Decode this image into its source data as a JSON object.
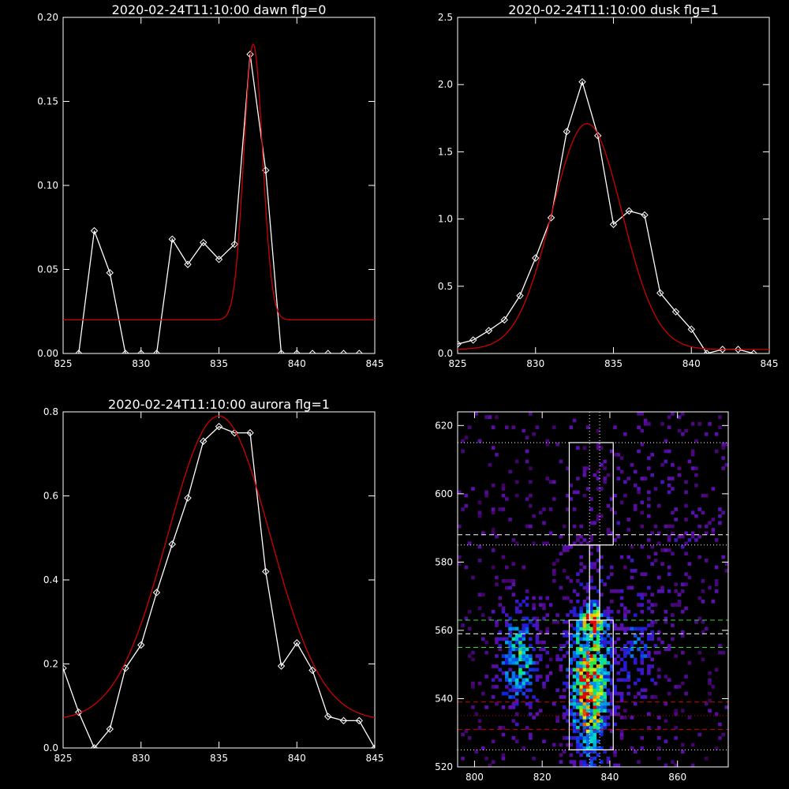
{
  "chart_data": [
    {
      "type": "line",
      "title": "2020-02-24T11:10:00 dawn flg=0",
      "xlim": [
        825,
        845
      ],
      "ylim": [
        0,
        0.2
      ],
      "xticks": [
        825,
        830,
        835,
        840,
        845
      ],
      "yticks": [
        0.0,
        0.05,
        0.1,
        0.15,
        0.2
      ],
      "ytick_labels": [
        "0.00",
        "0.05",
        "0.10",
        "0.15",
        "0.20"
      ],
      "series": [
        {
          "color": "#ffffff",
          "markers": "diamond",
          "x": [
            826,
            827,
            828,
            829,
            830,
            831,
            832,
            833,
            834,
            835,
            836,
            837,
            838,
            839,
            840,
            841,
            842,
            843,
            844
          ],
          "y": [
            0,
            0.073,
            0.048,
            0,
            0,
            0,
            0.068,
            0.053,
            0.066,
            0.056,
            0.065,
            0.178,
            0.109,
            0,
            0,
            0,
            0,
            0,
            0
          ]
        },
        {
          "color": "#d00000",
          "model": "gaussian",
          "baseline": 0.02,
          "amplitude": 0.164,
          "center": 837.2,
          "sigma": 0.6
        }
      ]
    },
    {
      "type": "line",
      "title": "2020-02-24T11:10:00 dusk flg=1",
      "xlim": [
        825,
        845
      ],
      "ylim": [
        0,
        2.5
      ],
      "xticks": [
        825,
        830,
        835,
        840,
        845
      ],
      "yticks": [
        0.0,
        0.5,
        1.0,
        1.5,
        2.0,
        2.5
      ],
      "ytick_labels": [
        "0.0",
        "0.5",
        "1.0",
        "1.5",
        "2.0",
        "2.5"
      ],
      "series": [
        {
          "color": "#ffffff",
          "markers": "diamond",
          "x": [
            825,
            826,
            827,
            828,
            829,
            830,
            831,
            832,
            833,
            834,
            835,
            836,
            837,
            838,
            839,
            840,
            841,
            842,
            843,
            844
          ],
          "y": [
            0.07,
            0.1,
            0.17,
            0.25,
            0.43,
            0.71,
            1.01,
            1.65,
            2.02,
            1.62,
            0.96,
            1.06,
            1.03,
            0.45,
            0.31,
            0.18,
            0,
            0.03,
            0.03,
            0
          ]
        },
        {
          "color": "#d00000",
          "model": "gaussian",
          "baseline": 0.03,
          "amplitude": 1.68,
          "center": 833.3,
          "sigma": 2.25
        }
      ]
    },
    {
      "type": "line",
      "title": "2020-02-24T11:10:00 aurora flg=1",
      "xlim": [
        825,
        845
      ],
      "ylim": [
        0,
        0.8
      ],
      "xticks": [
        825,
        830,
        835,
        840,
        845
      ],
      "yticks": [
        0.0,
        0.2,
        0.4,
        0.6,
        0.8
      ],
      "ytick_labels": [
        "0.0",
        "0.2",
        "0.4",
        "0.6",
        "0.8"
      ],
      "series": [
        {
          "color": "#ffffff",
          "markers": "diamond",
          "x": [
            825,
            826,
            827,
            828,
            829,
            830,
            831,
            832,
            833,
            834,
            835,
            836,
            837,
            838,
            839,
            840,
            841,
            842,
            843,
            844,
            845
          ],
          "y": [
            0.19,
            0.085,
            0,
            0.045,
            0.19,
            0.245,
            0.37,
            0.485,
            0.595,
            0.73,
            0.765,
            0.75,
            0.75,
            0.42,
            0.195,
            0.25,
            0.185,
            0.075,
            0.065,
            0.065,
            0
          ]
        },
        {
          "color": "#d00000",
          "model": "gaussian",
          "baseline": 0.065,
          "amplitude": 0.725,
          "center": 835.0,
          "sigma": 3.3
        }
      ]
    },
    {
      "type": "heatmap",
      "title": "",
      "xlim": [
        795,
        875
      ],
      "ylim": [
        520,
        624
      ],
      "xticks": [
        800,
        820,
        840,
        860
      ],
      "yticks": [
        520,
        540,
        560,
        580,
        600,
        620
      ],
      "colormap": "rainbow",
      "intensity_blobs": [
        {
          "x": 834,
          "y": 545,
          "sx": 4,
          "sy": 15,
          "amp": 1.0
        },
        {
          "x": 813,
          "y": 552,
          "sx": 4,
          "sy": 10,
          "amp": 0.55
        },
        {
          "x": 848,
          "y": 553,
          "sx": 4,
          "sy": 9,
          "amp": 0.3
        },
        {
          "x": 835,
          "y": 563,
          "sx": 2,
          "sy": 2,
          "amp": 0.9
        },
        {
          "x": 853,
          "y": 588,
          "sx": 18,
          "sy": 22,
          "amp": 0.08
        }
      ],
      "overlays": {
        "white_dotted_h": [
          525,
          585,
          615
        ],
        "white_dotted_v": [
          834,
          837
        ],
        "white_dashed_h": [
          559,
          588
        ],
        "green_dashed_h": [
          555,
          563
        ],
        "red_dashed_h": [
          531,
          539
        ],
        "red_dotted_h": [
          535
        ],
        "white_boxes": [
          {
            "x0": 828,
            "x1": 841,
            "y0": 585,
            "y1": 615
          },
          {
            "x0": 828,
            "x1": 841,
            "y0": 525,
            "y1": 563
          },
          {
            "x0": 834,
            "x1": 837,
            "y0": 563,
            "y1": 585
          }
        ]
      }
    }
  ]
}
